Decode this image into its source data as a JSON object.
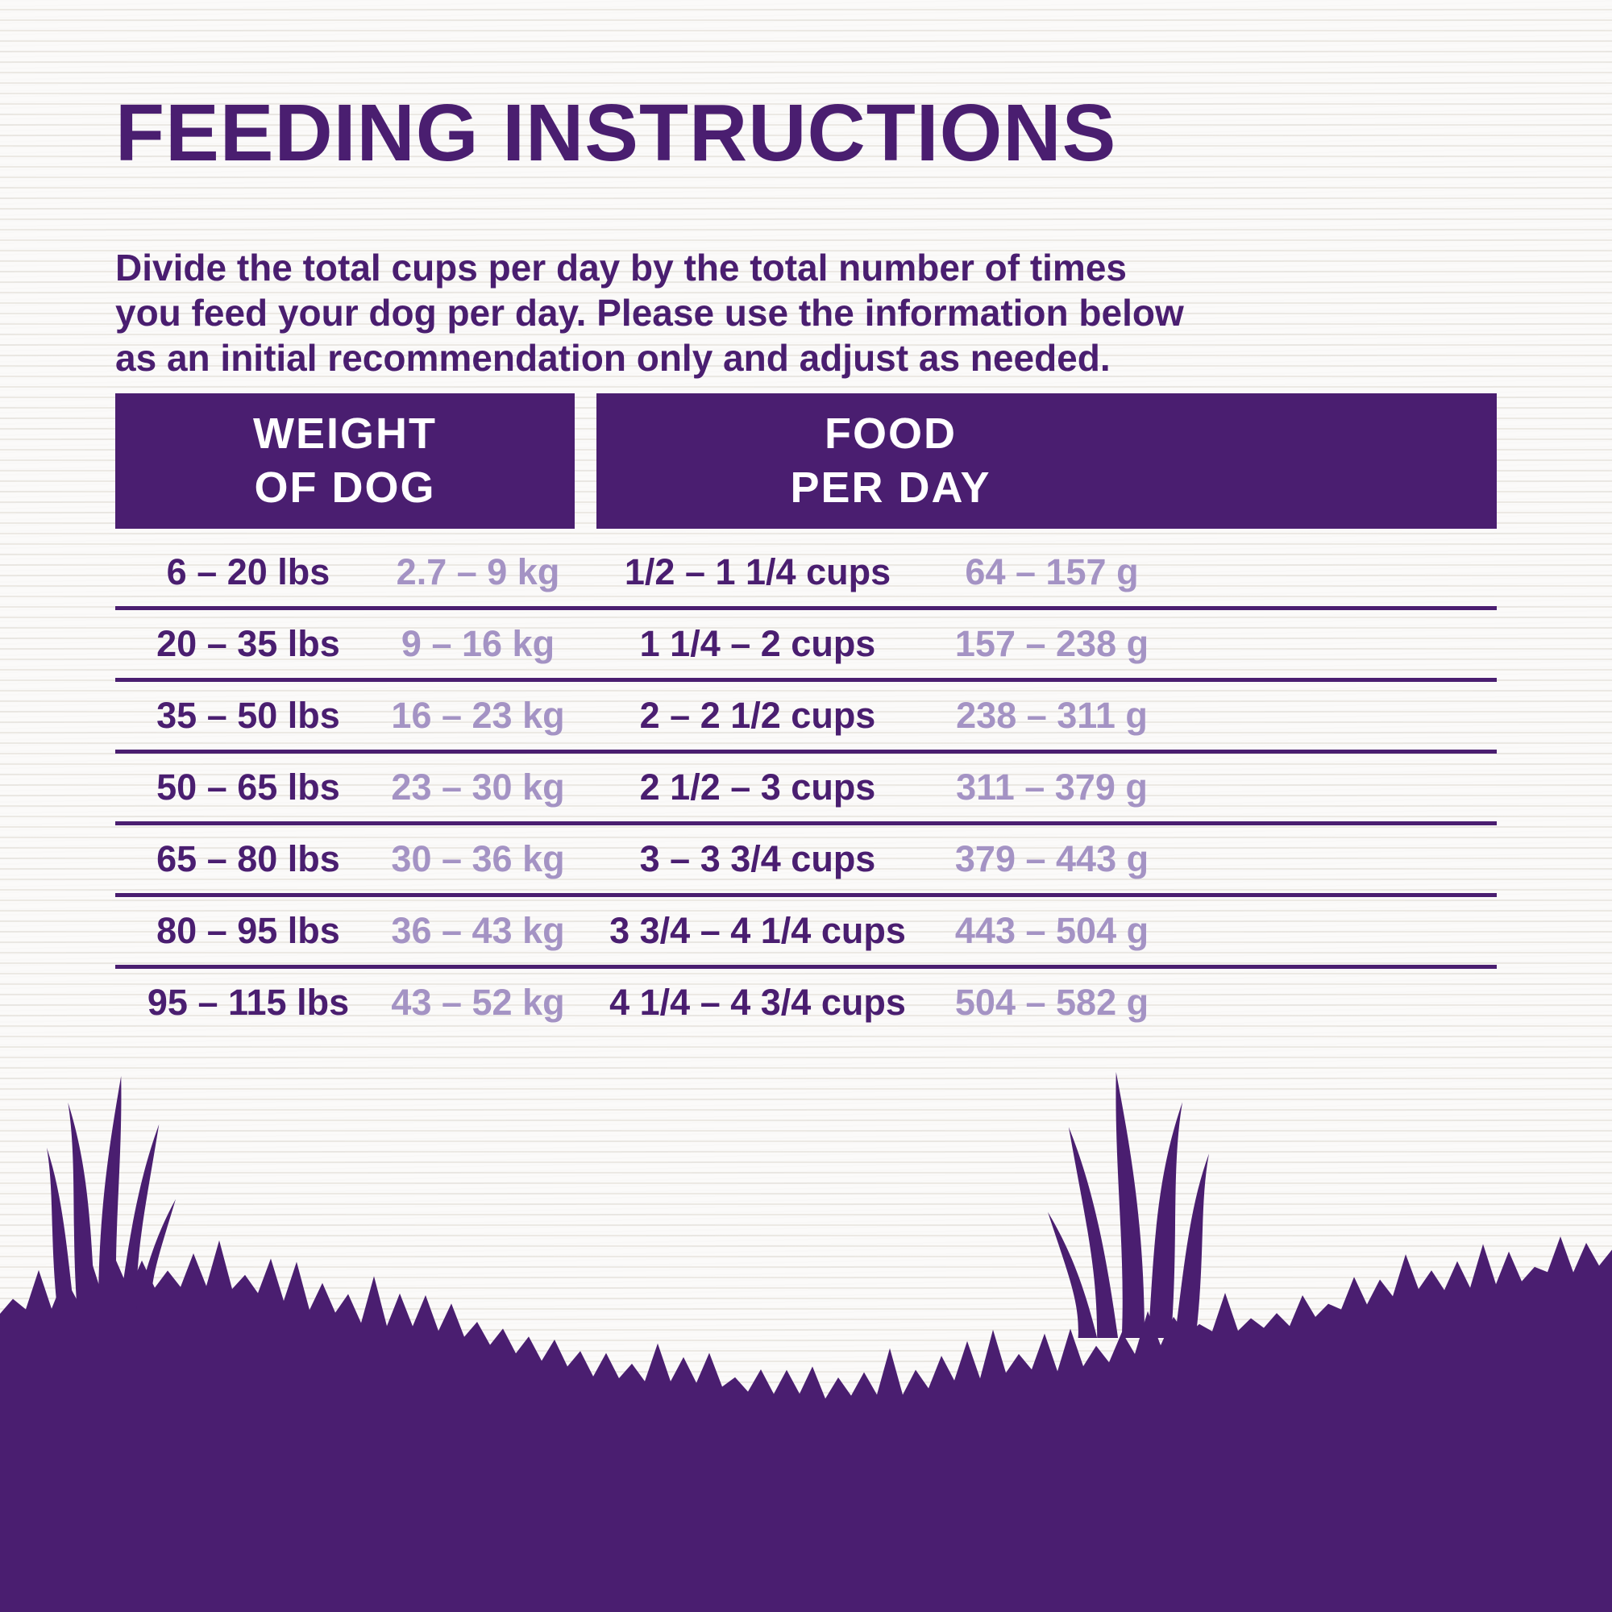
{
  "colors": {
    "primary": "#4a1e70",
    "light": "#a493c4",
    "background": "#f7f5f2"
  },
  "title": "FEEDING INSTRUCTIONS",
  "intro": "Divide the total cups per day by the total number of times you feed your dog per day. Please use the information below as an initial recommendation only and adjust as needed.",
  "table": {
    "headers": [
      {
        "label": "WEIGHT\nOF DOG"
      },
      {
        "label": "FOOD\nPER DAY"
      }
    ],
    "rows": [
      {
        "lbs": "6 – 20 lbs",
        "kg": "2.7 – 9 kg",
        "cups": "1/2 – 1 1/4 cups",
        "grams": "64 – 157 g"
      },
      {
        "lbs": "20 – 35 lbs",
        "kg": "9 – 16 kg",
        "cups": "1 1/4 – 2 cups",
        "grams": "157 – 238 g"
      },
      {
        "lbs": "35 – 50 lbs",
        "kg": "16 – 23 kg",
        "cups": "2 – 2 1/2 cups",
        "grams": "238 – 311 g"
      },
      {
        "lbs": "50 – 65 lbs",
        "kg": "23 – 30 kg",
        "cups": "2 1/2 – 3 cups",
        "grams": "311 – 379 g"
      },
      {
        "lbs": "65 – 80 lbs",
        "kg": "30 – 36 kg",
        "cups": "3 – 3 3/4 cups",
        "grams": "379 – 443 g"
      },
      {
        "lbs": "80 – 95 lbs",
        "kg": "36 – 43 kg",
        "cups": "3 3/4 – 4 1/4 cups",
        "grams": "443 – 504 g"
      },
      {
        "lbs": "95 – 115 lbs",
        "kg": "43 – 52 kg",
        "cups": "4 1/4 – 4 3/4 cups",
        "grams": "504 – 582 g"
      }
    ]
  }
}
